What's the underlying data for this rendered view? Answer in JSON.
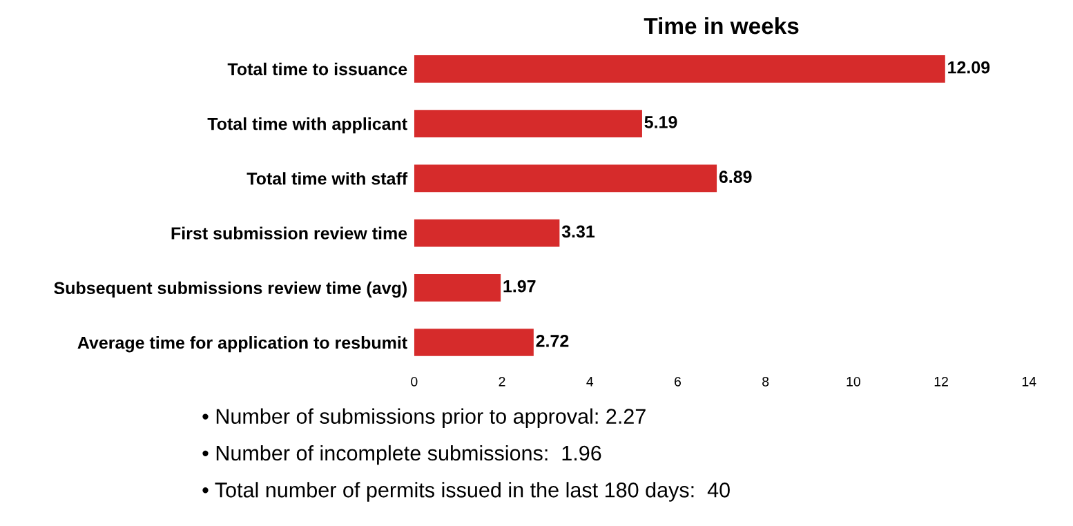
{
  "chart_data": {
    "type": "bar",
    "orientation": "horizontal",
    "title": "Time in weeks",
    "categories": [
      "Total time to issuance",
      "Total time with applicant",
      "Total time with staff",
      "First submission review time",
      "Subsequent submissions review time (avg)",
      "Average time for application to resbumit"
    ],
    "values": [
      12.09,
      5.19,
      6.89,
      3.31,
      1.97,
      2.72
    ],
    "color": "#d62b2b",
    "xlim": [
      0,
      14
    ],
    "xticks": [
      0,
      2,
      4,
      6,
      8,
      10,
      12,
      14
    ],
    "grid": false,
    "data_labels": true,
    "annotations": [
      "• Number of submissions prior to approval: 2.27",
      "• Number of incomplete submissions:  1.96",
      "• Total number of permits issued in the last 180 days:  40"
    ]
  }
}
